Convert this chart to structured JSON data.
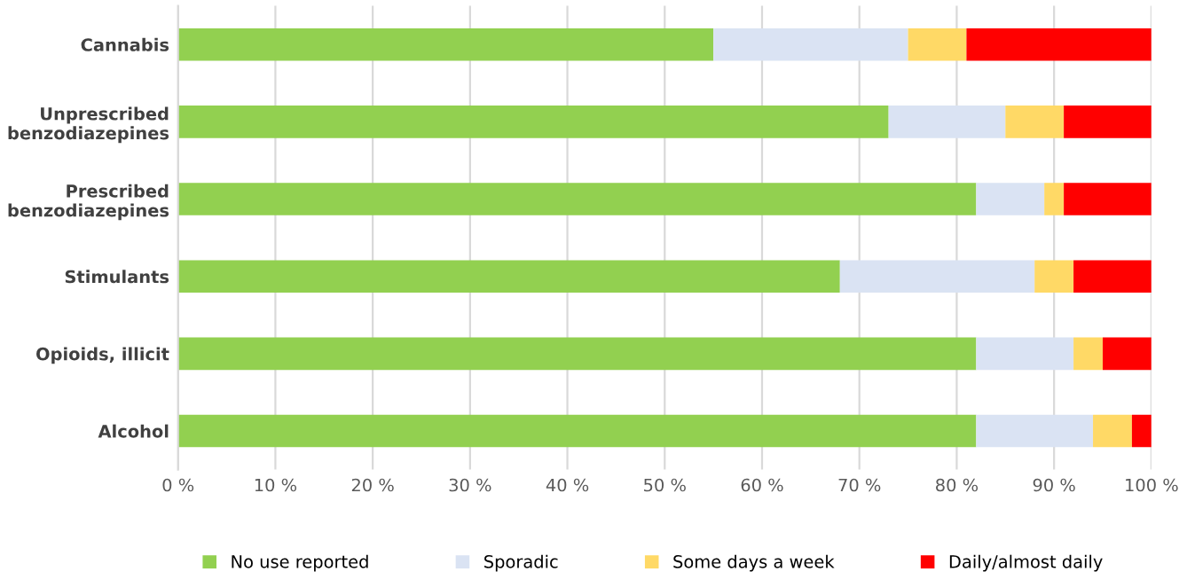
{
  "chart_data": {
    "type": "bar",
    "orientation": "horizontal",
    "stacked": true,
    "categories": [
      "Cannabis",
      "Unprescribed\nbenzodiazepines",
      "Prescribed\nbenzodiazepines",
      "Stimulants",
      "Opioids, illicit",
      "Alcohol"
    ],
    "series": [
      {
        "name": "No use reported",
        "color": "#92d050",
        "values": [
          55,
          73,
          82,
          68,
          82,
          82
        ]
      },
      {
        "name": "Sporadic",
        "color": "#dae3f3",
        "values": [
          20,
          12,
          7,
          20,
          10,
          12
        ]
      },
      {
        "name": "Some days a week",
        "color": "#ffd966",
        "values": [
          6,
          6,
          2,
          4,
          3,
          4
        ]
      },
      {
        "name": "Daily/almost daily",
        "color": "#ff0000",
        "values": [
          19,
          9,
          9,
          8,
          5,
          2
        ]
      }
    ],
    "xlim": [
      0,
      100
    ],
    "xticks": [
      {
        "value": 0,
        "label": "0 %"
      },
      {
        "value": 10,
        "label": "10 %"
      },
      {
        "value": 20,
        "label": "20 %"
      },
      {
        "value": 30,
        "label": "30 %"
      },
      {
        "value": 40,
        "label": "40 %"
      },
      {
        "value": 50,
        "label": "50 %"
      },
      {
        "value": 60,
        "label": "60 %"
      },
      {
        "value": 70,
        "label": "70 %"
      },
      {
        "value": 80,
        "label": "80 %"
      },
      {
        "value": 90,
        "label": "90 %"
      },
      {
        "value": 100,
        "label": "100 %"
      }
    ],
    "grid": "x",
    "legend": "bottom"
  }
}
